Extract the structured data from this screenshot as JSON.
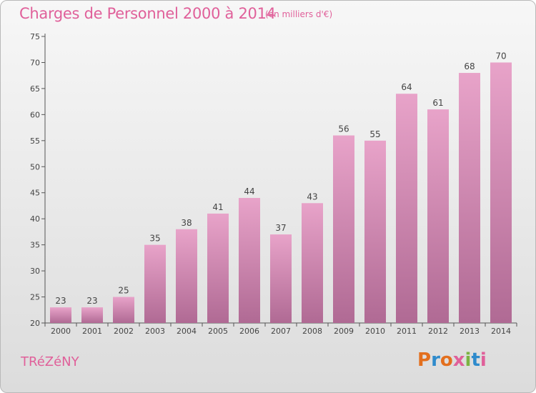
{
  "header": {
    "title": "Charges de Personnel 2000 à 2014",
    "subtitle": "(en milliers d'€)"
  },
  "footer": {
    "town": "TRéZéNY",
    "logo_text": "Proxiti"
  },
  "colors": {
    "title": "#e0609a",
    "bar_top": "#e8a3c9",
    "bar_bottom": "#b06a94",
    "logo": [
      "#e36f1e",
      "#2f8bcc",
      "#e36f1e",
      "#e0609a",
      "#7cb342",
      "#2f8bcc",
      "#e0609a"
    ]
  },
  "chart_data": {
    "type": "bar",
    "categories": [
      "2000",
      "2001",
      "2002",
      "2003",
      "2004",
      "2005",
      "2006",
      "2007",
      "2008",
      "2009",
      "2010",
      "2011",
      "2012",
      "2013",
      "2014"
    ],
    "values": [
      23,
      23,
      25,
      35,
      38,
      41,
      44,
      37,
      43,
      56,
      55,
      64,
      61,
      68,
      70
    ],
    "title": "Charges de Personnel 2000 à 2014",
    "subtitle": "(en milliers d'€)",
    "ylim": [
      20,
      75
    ],
    "yticks": [
      20,
      25,
      30,
      35,
      40,
      45,
      50,
      55,
      60,
      65,
      70,
      75
    ],
    "grid": false,
    "data_labels": true
  }
}
